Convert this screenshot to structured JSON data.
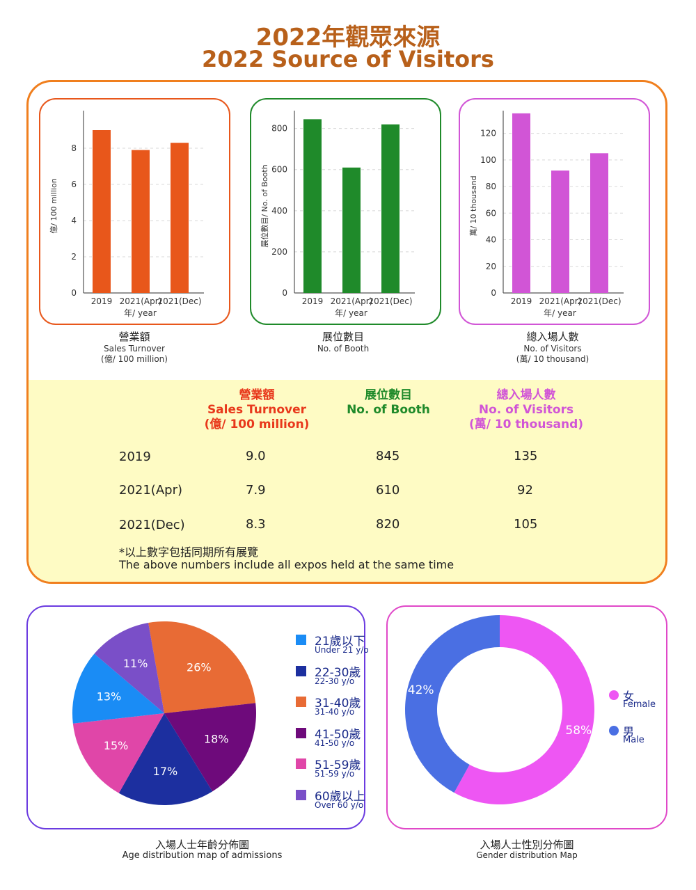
{
  "header": {
    "title_zh": "2022年觀眾來源",
    "title_en": "2022 Source of Visitors"
  },
  "colors": {
    "title": "#b8601a",
    "panel_border": "#f07f1e",
    "table_bg": "#fefbc4",
    "turnover": "#e8571b",
    "booth": "#1f8a2a",
    "visitors": "#d155d6",
    "age_border": "#6b3be0",
    "gender_border": "#e048c8"
  },
  "captions": {
    "turnover": {
      "zh": "營業額",
      "en": "Sales Turnover",
      "unit": "(億/ 100 million)"
    },
    "booth": {
      "zh": "展位數目",
      "en": "No. of Booth"
    },
    "visitors": {
      "zh": "總入場人數",
      "en": "No. of Visitors",
      "unit": "(萬/ 10 thousand)"
    }
  },
  "table": {
    "headers": [
      {
        "zh": "營業額",
        "en": "Sales Turnover",
        "unit": "(億/ 100 million)"
      },
      {
        "zh": "展位數目",
        "en": "No. of Booth",
        "unit": ""
      },
      {
        "zh": "總入場人數",
        "en": "No. of Visitors",
        "unit": "(萬/ 10 thousand)"
      }
    ],
    "rows": [
      {
        "label": "2019",
        "turnover": "9.0",
        "booth": "845",
        "visitors": "135"
      },
      {
        "label": "2021(Apr)",
        "turnover": "7.9",
        "booth": "610",
        "visitors": "92"
      },
      {
        "label": "2021(Dec)",
        "turnover": "8.3",
        "booth": "820",
        "visitors": "105"
      }
    ],
    "note_zh": "*以上數字包括同期所有展覽",
    "note_en": "The above numbers include all expos held at the same time"
  },
  "age_caption": {
    "zh": "入場人士年齡分佈圖",
    "en": "Age distribution map of admissions"
  },
  "gender_caption": {
    "zh": "入場人士性別分佈圖",
    "en": "Gender distribution Map"
  },
  "chart_data": [
    {
      "id": "turnover",
      "type": "bar",
      "categories": [
        "2019",
        "2021(Apr)",
        "2021(Dec)"
      ],
      "values": [
        9.0,
        7.9,
        8.3
      ],
      "xlabel": "年/ year",
      "ylabel": "億/ 100 million",
      "ylim": [
        0,
        10
      ],
      "yticks": [
        0,
        2,
        4,
        6,
        8
      ],
      "color": "#e8571b",
      "grid": true
    },
    {
      "id": "booth",
      "type": "bar",
      "categories": [
        "2019",
        "2021(Apr)",
        "2021(Dec)"
      ],
      "values": [
        845,
        610,
        820
      ],
      "xlabel": "年/ year",
      "ylabel": "展位數目/ No. of Booth",
      "ylim": [
        0,
        880
      ],
      "yticks": [
        0,
        200,
        400,
        600,
        800
      ],
      "color": "#1f8a2a",
      "grid": true
    },
    {
      "id": "visitors",
      "type": "bar",
      "categories": [
        "2019",
        "2021(Apr)",
        "2021(Dec)"
      ],
      "values": [
        135,
        92,
        105
      ],
      "xlabel": "年/ year",
      "ylabel": "萬/ 10 thousand",
      "ylim": [
        0,
        136
      ],
      "yticks": [
        0,
        20,
        40,
        60,
        80,
        100,
        120
      ],
      "color": "#d155d6",
      "grid": true
    },
    {
      "id": "age",
      "type": "pie",
      "slices": [
        {
          "zh": "21歲以下",
          "en": "Under 21 y/o",
          "value": 13,
          "label": "13%",
          "color": "#1a8cf5"
        },
        {
          "zh": "22-30歲",
          "en": "22-30 y/o",
          "value": 17,
          "label": "17%",
          "color": "#1c2f9f"
        },
        {
          "zh": "31-40歲",
          "en": "31-40 y/o",
          "value": 26,
          "label": "26%",
          "color": "#e86b35"
        },
        {
          "zh": "41-50歲",
          "en": "41-50 y/o",
          "value": 18,
          "label": "18%",
          "color": "#6e0a7b"
        },
        {
          "zh": "51-59歲",
          "en": "51-59 y/o",
          "value": 15,
          "label": "15%",
          "color": "#e046a8"
        },
        {
          "zh": "60歲以上",
          "en": "Over 60 y/o",
          "value": 11,
          "label": "11%",
          "color": "#7a4fc8"
        }
      ]
    },
    {
      "id": "gender",
      "type": "pie",
      "donut": true,
      "slices": [
        {
          "zh": "女",
          "en": "Female",
          "value": 58,
          "label": "58%",
          "color": "#ee56f3"
        },
        {
          "zh": "男",
          "en": "Male",
          "value": 42,
          "label": "42%",
          "color": "#4a6fe3"
        }
      ]
    }
  ]
}
